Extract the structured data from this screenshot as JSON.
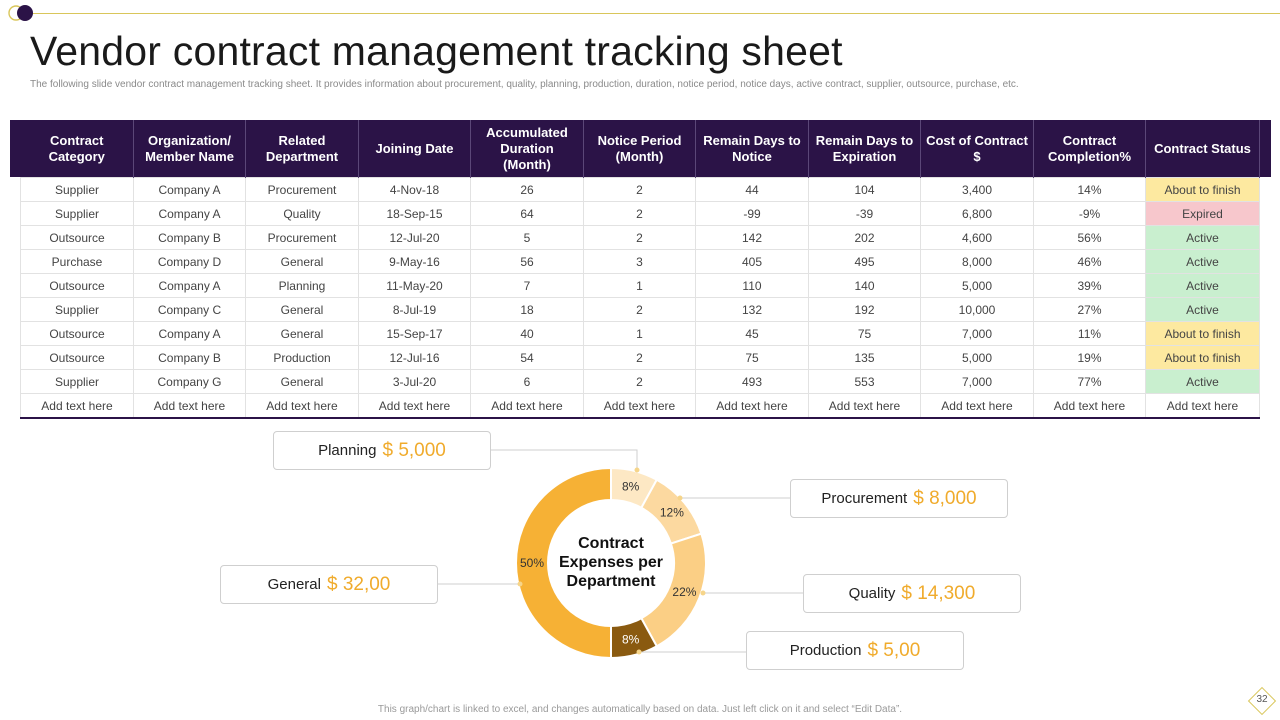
{
  "title": "Vendor contract management tracking sheet",
  "subtitle": "The following slide vendor contract management tracking sheet. It provides information about procurement, quality, planning, production, duration, notice period, notice days, active contract, supplier, outsource, purchase, etc.",
  "table": {
    "headers": [
      "Contract Category",
      "Organization/ Member Name",
      "Related Department",
      "Joining Date",
      "Accumulated Duration (Month)",
      "Notice Period (Month)",
      "Remain Days to Notice",
      "Remain Days to Expiration",
      "Cost of Contract $",
      "Contract Completion%",
      "Contract Status"
    ],
    "rows": [
      [
        "Supplier",
        "Company A",
        "Procurement",
        "4-Nov-18",
        "26",
        "2",
        "44",
        "104",
        "3,400",
        "14%",
        "About to finish"
      ],
      [
        "Supplier",
        "Company A",
        "Quality",
        "18-Sep-15",
        "64",
        "2",
        "-99",
        "-39",
        "6,800",
        "-9%",
        "Expired"
      ],
      [
        "Outsource",
        "Company B",
        "Procurement",
        "12-Jul-20",
        "5",
        "2",
        "142",
        "202",
        "4,600",
        "56%",
        "Active"
      ],
      [
        "Purchase",
        "Company D",
        "General",
        "9-May-16",
        "56",
        "3",
        "405",
        "495",
        "8,000",
        "46%",
        "Active"
      ],
      [
        "Outsource",
        "Company A",
        "Planning",
        "11-May-20",
        "7",
        "1",
        "110",
        "140",
        "5,000",
        "39%",
        "Active"
      ],
      [
        "Supplier",
        "Company C",
        "General",
        "8-Jul-19",
        "18",
        "2",
        "132",
        "192",
        "10,000",
        "27%",
        "Active"
      ],
      [
        "Outsource",
        "Company A",
        "General",
        "15-Sep-17",
        "40",
        "1",
        "45",
        "75",
        "7,000",
        "11%",
        "About to finish"
      ],
      [
        "Outsource",
        "Company B",
        "Production",
        "12-Jul-16",
        "54",
        "2",
        "75",
        "135",
        "5,000",
        "19%",
        "About to finish"
      ],
      [
        "Supplier",
        "Company G",
        "General",
        "3-Jul-20",
        "6",
        "2",
        "493",
        "553",
        "7,000",
        "77%",
        "Active"
      ],
      [
        "Add text here",
        "Add text here",
        "Add text here",
        "Add text here",
        "Add text here",
        "Add text here",
        "Add text here",
        "Add text here",
        "Add text here",
        "Add text here",
        "Add text here"
      ]
    ]
  },
  "chart_data": {
    "type": "pie",
    "title": "Contract Expenses per Department",
    "categories": [
      "Planning",
      "Procurement",
      "Quality",
      "Production",
      "General"
    ],
    "values": [
      8,
      12,
      22,
      8,
      50
    ],
    "value_labels": [
      "8%",
      "12%",
      "22%",
      "8%",
      "50%"
    ],
    "amounts": [
      "$ 5,000",
      "$ 8,000",
      "$ 14,300",
      "$ 5,00",
      "$ 32,00"
    ],
    "colors": [
      "#fde8c4",
      "#fcd9a0",
      "#fbcf85",
      "#8a5a10",
      "#f6b135"
    ]
  },
  "footer": "This graph/chart is linked to excel, and changes automatically based on data. Just left click on it and select “Edit Data”.",
  "page_number": "32",
  "colors": {
    "header": "#2b1347",
    "accent": "#f0ab2c",
    "gold_line": "#d9c65a"
  }
}
